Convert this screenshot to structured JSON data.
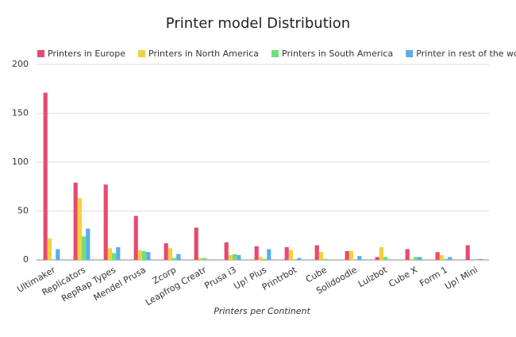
{
  "chart_data": {
    "type": "bar",
    "title": "Printer model Distribution",
    "x_label": "Printers per Continent",
    "categories": [
      "Ultimaker",
      "Replicators",
      "RepRap Types",
      "Mendel Prusa",
      "Zcorp",
      "Leapfrog Creatr",
      "Prusa i3",
      "Up! Plus",
      "Printrbot",
      "Cube",
      "Solidoodle",
      "Lulzbot",
      "Cube X",
      "Form 1",
      "Up! Mini"
    ],
    "series": [
      {
        "name": "Printers in Europe",
        "color": "#e8496f",
        "values": [
          171,
          79,
          77,
          45,
          17,
          33,
          18,
          14,
          13,
          15,
          9,
          3,
          11,
          8,
          15
        ]
      },
      {
        "name": "Printers in North America",
        "color": "#f2d13c",
        "values": [
          22,
          63,
          12,
          10,
          12,
          2,
          5,
          3,
          10,
          8,
          9,
          13,
          1,
          5,
          0
        ]
      },
      {
        "name": "Printers in South America",
        "color": "#6de07b",
        "values": [
          0,
          24,
          7,
          9,
          2,
          2,
          6,
          1,
          0,
          1,
          0,
          3,
          3,
          1,
          0
        ]
      },
      {
        "name": "Printer in rest of the world",
        "color": "#5aaee6",
        "values": [
          11,
          32,
          13,
          8,
          6,
          0,
          5,
          11,
          2,
          0,
          4,
          0,
          3,
          3,
          1
        ]
      }
    ],
    "ylim": [
      0,
      200
    ],
    "yticks": [
      0,
      50,
      100,
      150,
      200
    ],
    "grid": true,
    "legend": "top-left"
  }
}
